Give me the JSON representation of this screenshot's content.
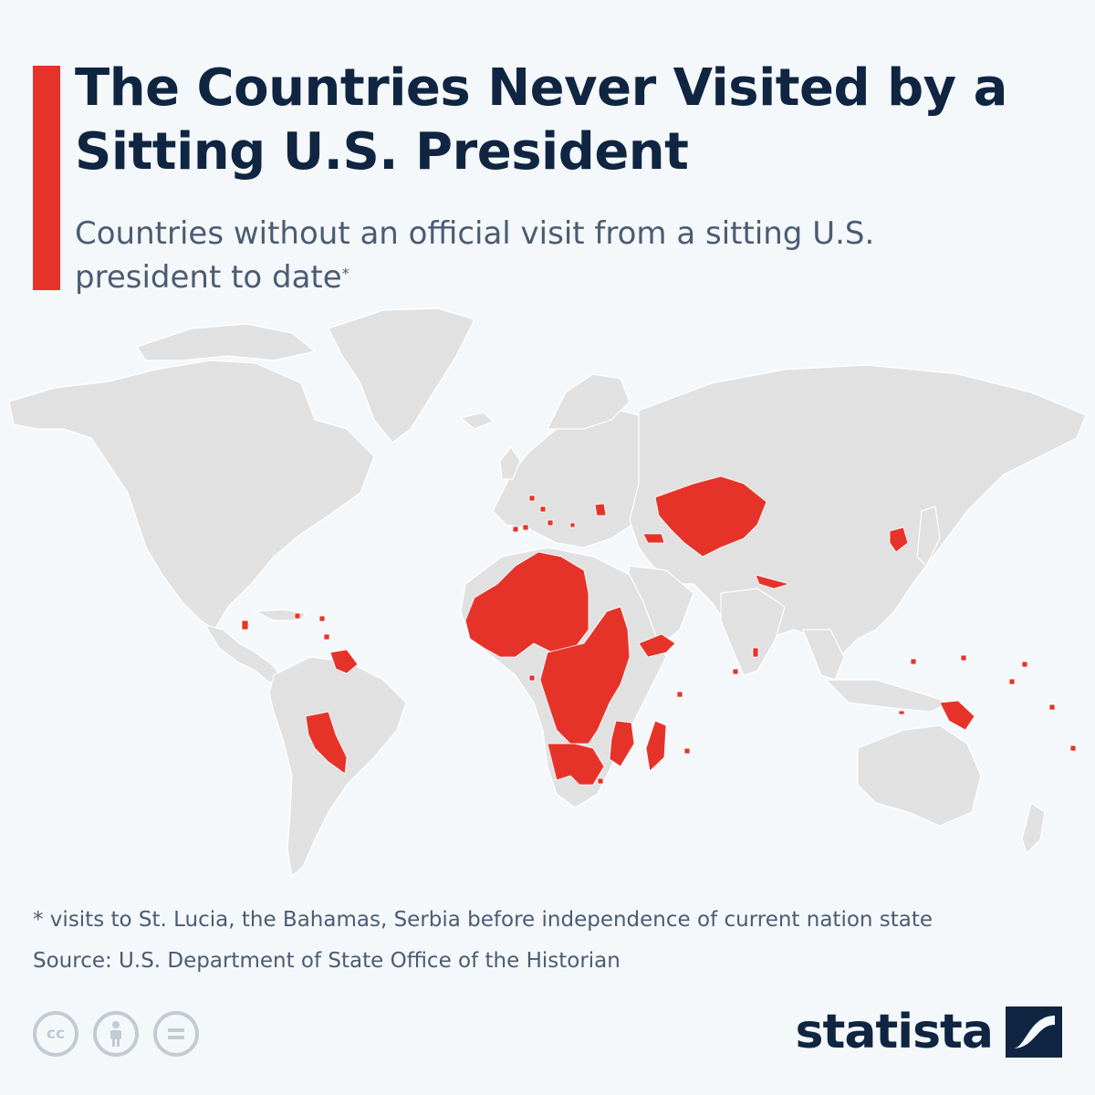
{
  "header": {
    "title": "The Countries Never Visited by a Sitting U.S. President",
    "subtitle": "Countries without an official visit from a sitting U.S. president to date",
    "subtitle_marker": "*",
    "accent_color": "#e63329"
  },
  "map": {
    "land_color": "#e1e1e2",
    "highlight_color": "#e63329",
    "legend_meaning": "Countries without an official visit from a sitting U.S. president to date"
  },
  "footer": {
    "footnote": "* visits to St. Lucia, the Bahamas, Serbia before independence of current nation state",
    "source": "Source: U.S. Department of State Office of the Historian",
    "licence_icons": [
      "cc-icon",
      "attribution-icon",
      "no-derivatives-icon"
    ],
    "brand": "statista"
  }
}
